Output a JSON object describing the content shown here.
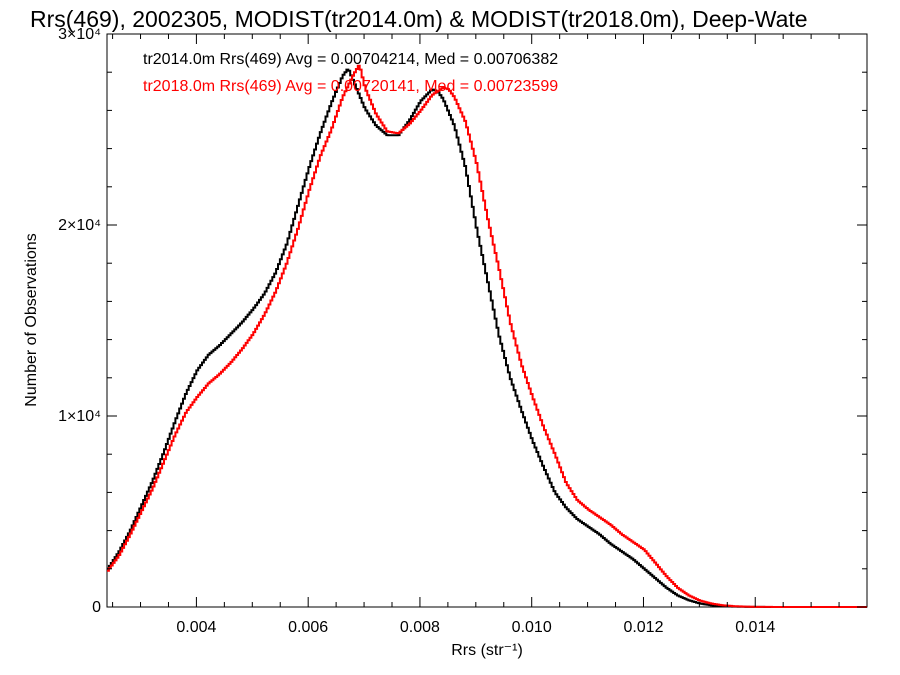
{
  "chart_data": {
    "type": "line",
    "style": "step-histogram",
    "title": "Rrs(469), 2002305, MODIST(tr2014.0m) & MODIST(tr2018.0m), Deep-Wate",
    "xlabel": "Rrs (str⁻¹)",
    "ylabel": "Number of Observations",
    "xlim": [
      0.0024,
      0.016
    ],
    "ylim": [
      0,
      30000
    ],
    "x_ticks": [
      {
        "value": 0.004,
        "label": "0.004"
      },
      {
        "value": 0.006,
        "label": "0.006"
      },
      {
        "value": 0.008,
        "label": "0.008"
      },
      {
        "value": 0.01,
        "label": "0.010"
      },
      {
        "value": 0.012,
        "label": "0.012"
      },
      {
        "value": 0.014,
        "label": "0.014"
      }
    ],
    "y_ticks": [
      {
        "value": 0,
        "label": "0"
      },
      {
        "value": 10000,
        "label": "1×10⁴"
      },
      {
        "value": 20000,
        "label": "2×10⁴"
      },
      {
        "value": 30000,
        "label": "3×10⁴"
      }
    ],
    "grid": false,
    "legend_position": "top-left",
    "series": [
      {
        "name": "tr2014.0m",
        "color": "#000000",
        "legend_text": "tr2014.0m Rrs(469) Avg = 0.00704214, Med = 0.00706382",
        "points": [
          [
            0.0024,
            2000
          ],
          [
            0.0026,
            2900
          ],
          [
            0.0028,
            4000
          ],
          [
            0.003,
            5300
          ],
          [
            0.0032,
            6600
          ],
          [
            0.0034,
            8100
          ],
          [
            0.0036,
            9700
          ],
          [
            0.0038,
            11200
          ],
          [
            0.004,
            12400
          ],
          [
            0.0042,
            13200
          ],
          [
            0.0044,
            13700
          ],
          [
            0.0046,
            14300
          ],
          [
            0.0048,
            14900
          ],
          [
            0.005,
            15600
          ],
          [
            0.0052,
            16400
          ],
          [
            0.0054,
            17500
          ],
          [
            0.0056,
            19000
          ],
          [
            0.0058,
            21000
          ],
          [
            0.006,
            23000
          ],
          [
            0.0062,
            24800
          ],
          [
            0.0064,
            26400
          ],
          [
            0.0066,
            27800
          ],
          [
            0.0067,
            28200
          ],
          [
            0.0068,
            27500
          ],
          [
            0.007,
            26100
          ],
          [
            0.0072,
            25200
          ],
          [
            0.0074,
            24700
          ],
          [
            0.0076,
            24700
          ],
          [
            0.0078,
            25500
          ],
          [
            0.008,
            26500
          ],
          [
            0.0082,
            27100
          ],
          [
            0.0083,
            27000
          ],
          [
            0.0084,
            26600
          ],
          [
            0.0086,
            25200
          ],
          [
            0.0088,
            23000
          ],
          [
            0.009,
            19800
          ],
          [
            0.0092,
            17000
          ],
          [
            0.0094,
            14200
          ],
          [
            0.0096,
            12000
          ],
          [
            0.0098,
            10300
          ],
          [
            0.01,
            8700
          ],
          [
            0.0102,
            7300
          ],
          [
            0.0104,
            6000
          ],
          [
            0.0106,
            5200
          ],
          [
            0.0108,
            4600
          ],
          [
            0.011,
            4200
          ],
          [
            0.0112,
            3800
          ],
          [
            0.0114,
            3300
          ],
          [
            0.0116,
            2900
          ],
          [
            0.0118,
            2500
          ],
          [
            0.012,
            2000
          ],
          [
            0.0122,
            1500
          ],
          [
            0.0124,
            1000
          ],
          [
            0.0126,
            600
          ],
          [
            0.0128,
            350
          ],
          [
            0.013,
            180
          ],
          [
            0.0132,
            90
          ],
          [
            0.0134,
            40
          ],
          [
            0.0136,
            20
          ],
          [
            0.0138,
            10
          ],
          [
            0.014,
            5
          ],
          [
            0.0145,
            0
          ],
          [
            0.016,
            0
          ]
        ]
      },
      {
        "name": "tr2018.0m",
        "color": "#ff0000",
        "legend_text": "tr2018.0m Rrs(469) Avg = 0.00720141, Med = 0.00723599",
        "points": [
          [
            0.0024,
            1900
          ],
          [
            0.0026,
            2700
          ],
          [
            0.0028,
            3800
          ],
          [
            0.003,
            5000
          ],
          [
            0.0032,
            6200
          ],
          [
            0.0034,
            7600
          ],
          [
            0.0036,
            9000
          ],
          [
            0.0038,
            10200
          ],
          [
            0.004,
            11000
          ],
          [
            0.0042,
            11700
          ],
          [
            0.0044,
            12200
          ],
          [
            0.0046,
            12800
          ],
          [
            0.0048,
            13500
          ],
          [
            0.005,
            14300
          ],
          [
            0.0052,
            15300
          ],
          [
            0.0054,
            16500
          ],
          [
            0.0056,
            18000
          ],
          [
            0.0058,
            19800
          ],
          [
            0.006,
            21800
          ],
          [
            0.0062,
            23600
          ],
          [
            0.0064,
            25000
          ],
          [
            0.0066,
            26700
          ],
          [
            0.0068,
            27900
          ],
          [
            0.0069,
            28400
          ],
          [
            0.007,
            27200
          ],
          [
            0.0072,
            25800
          ],
          [
            0.0074,
            24900
          ],
          [
            0.0076,
            24800
          ],
          [
            0.0078,
            25300
          ],
          [
            0.008,
            26000
          ],
          [
            0.0082,
            26800
          ],
          [
            0.0084,
            27200
          ],
          [
            0.0085,
            27100
          ],
          [
            0.0086,
            26700
          ],
          [
            0.0088,
            25400
          ],
          [
            0.009,
            23200
          ],
          [
            0.0092,
            20300
          ],
          [
            0.0094,
            17700
          ],
          [
            0.0096,
            14900
          ],
          [
            0.0098,
            12700
          ],
          [
            0.01,
            11000
          ],
          [
            0.0102,
            9400
          ],
          [
            0.0104,
            8000
          ],
          [
            0.0106,
            6500
          ],
          [
            0.0108,
            5600
          ],
          [
            0.011,
            5100
          ],
          [
            0.0112,
            4700
          ],
          [
            0.0114,
            4300
          ],
          [
            0.0116,
            3800
          ],
          [
            0.0118,
            3400
          ],
          [
            0.012,
            3000
          ],
          [
            0.0122,
            2300
          ],
          [
            0.0124,
            1600
          ],
          [
            0.0126,
            1000
          ],
          [
            0.0128,
            600
          ],
          [
            0.013,
            330
          ],
          [
            0.0132,
            180
          ],
          [
            0.0134,
            90
          ],
          [
            0.0136,
            45
          ],
          [
            0.0138,
            20
          ],
          [
            0.014,
            8
          ],
          [
            0.0145,
            0
          ],
          [
            0.016,
            0
          ]
        ]
      }
    ]
  }
}
